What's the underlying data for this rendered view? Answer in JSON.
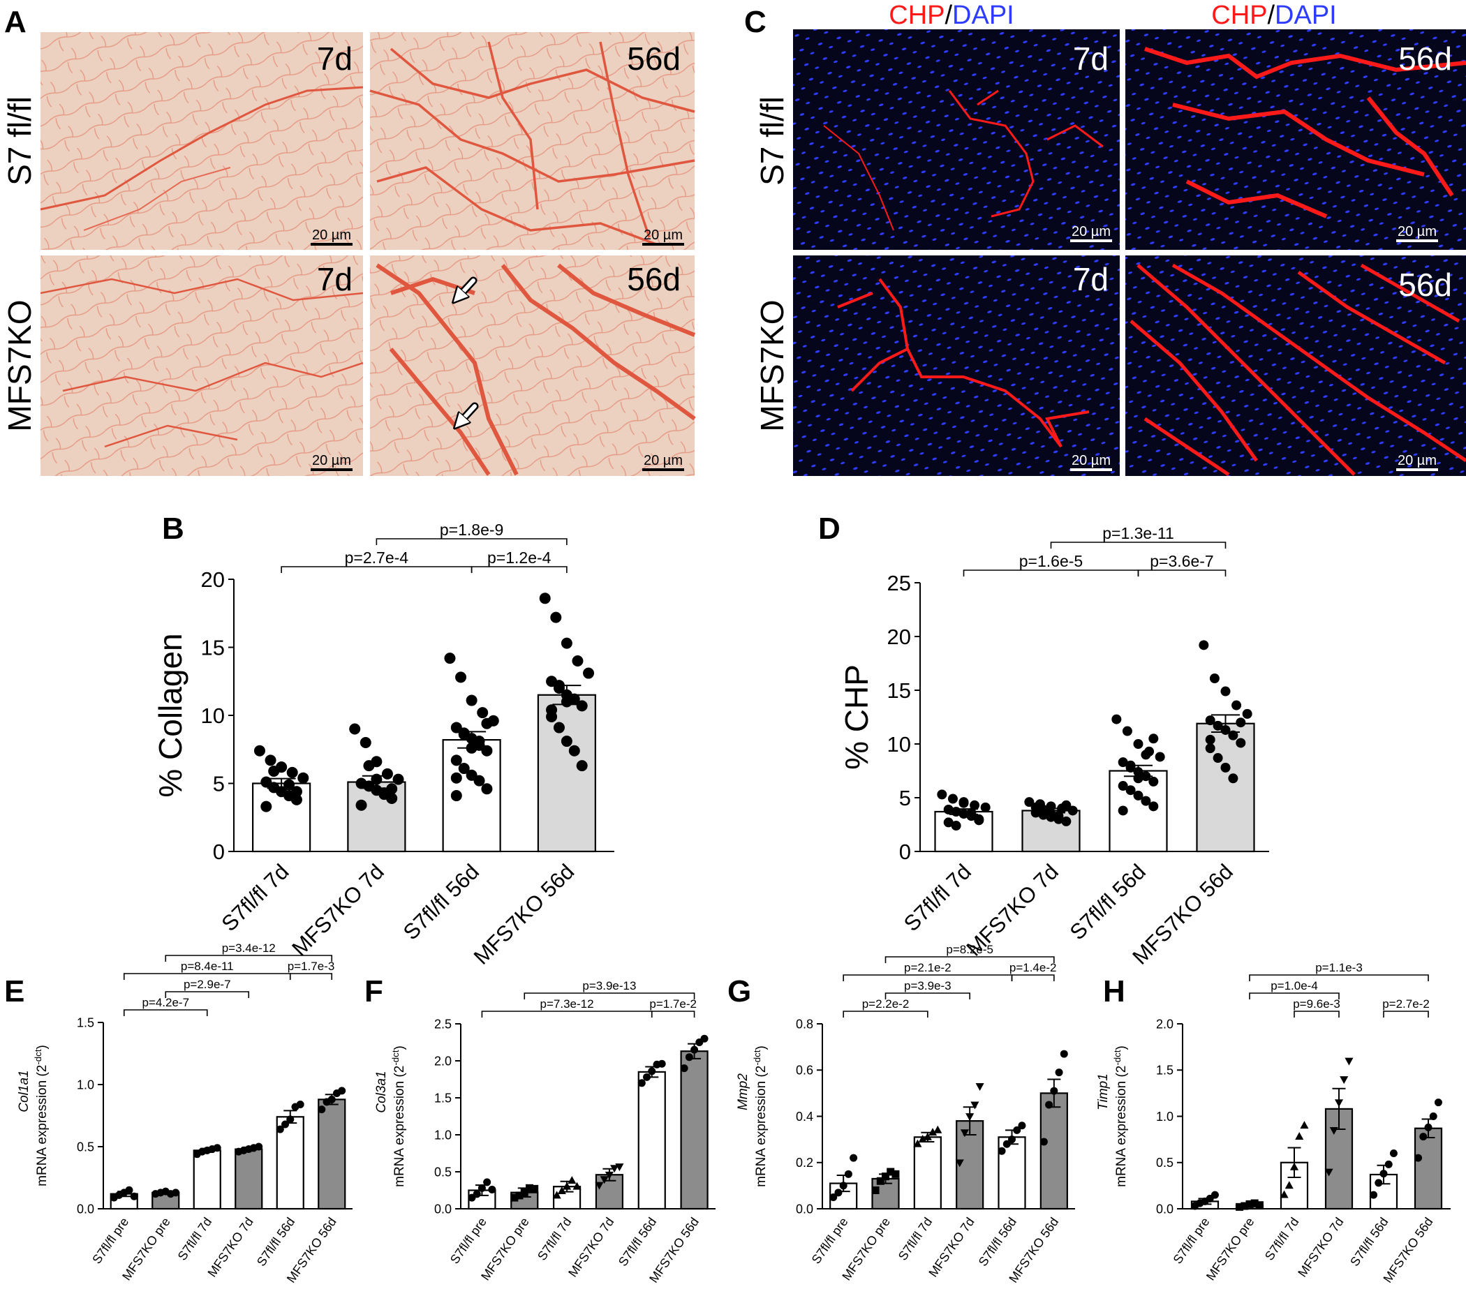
{
  "panel_letters": [
    "A",
    "B",
    "C",
    "D",
    "E",
    "F",
    "G",
    "H"
  ],
  "histology": {
    "rows": [
      "S7 fl/fl",
      "MFS7KO"
    ],
    "timepoints": [
      "7d",
      "56d"
    ],
    "scale_bar": "20 µm",
    "stain_title": {
      "chp": "CHP",
      "sep": "/",
      "dapi": "DAPI"
    },
    "colors": {
      "picrosirius_bg": "#ecd0c0",
      "picrosirius_fiber": "#e0573f",
      "fluor_bg": "#05051c",
      "chp_red": "#ff1a1a",
      "dapi_blue": "#2e3cff"
    }
  },
  "chart_data": [
    {
      "id": "B",
      "type": "bar",
      "ylabel": "% Collagen",
      "ylim": [
        0,
        20
      ],
      "yticks": [
        0,
        5,
        10,
        15,
        20
      ],
      "categories": [
        "S7fl/fl 7d",
        "MFS7KO 7d",
        "S7fl/fl 56d",
        "MFS7KO 56d"
      ],
      "values": [
        5.0,
        5.1,
        8.2,
        11.5
      ],
      "sem": [
        0.35,
        0.45,
        0.6,
        0.7
      ],
      "bar_fill": [
        "#ffffff",
        "#d9d9d9",
        "#ffffff",
        "#d9d9d9"
      ],
      "points": [
        [
          7.4,
          6.7,
          6.2,
          5.8,
          5.4,
          5.1,
          4.7,
          4.4,
          4.1,
          3.8,
          3.3,
          5.9,
          6.2,
          4.9,
          4.4
        ],
        [
          9.0,
          8.0,
          6.6,
          5.7,
          5.3,
          5.0,
          4.8,
          4.5,
          4.2,
          3.9,
          3.4,
          6.3,
          5.3,
          4.3,
          4.6
        ],
        [
          14.2,
          12.8,
          11.1,
          10.2,
          9.6,
          9.1,
          8.6,
          8.3,
          7.8,
          7.4,
          6.7,
          6.1,
          5.6,
          5.2,
          4.6,
          4.1,
          8.7,
          7.6,
          8.1,
          9.4,
          5.4
        ],
        [
          18.6,
          17.2,
          15.3,
          14.0,
          13.1,
          12.5,
          12.0,
          11.5,
          11.2,
          10.7,
          9.9,
          9.1,
          8.1,
          7.4,
          6.3,
          10.4,
          12.2,
          11.0
        ]
      ],
      "annotations": [
        {
          "from": 0,
          "to": 2,
          "label": "p=2.7e-4",
          "level": 0
        },
        {
          "from": 2,
          "to": 3,
          "label": "p=1.2e-4",
          "level": 0
        },
        {
          "from": 1,
          "to": 3,
          "label": "p=1.8e-9",
          "level": 1
        }
      ]
    },
    {
      "id": "D",
      "type": "bar",
      "ylabel": "% CHP",
      "ylim": [
        0,
        25
      ],
      "yticks": [
        0,
        5,
        10,
        15,
        20,
        25
      ],
      "categories": [
        "S7fl/fl 7d",
        "MFS7KO 7d",
        "S7fl/fl 56d",
        "MFS7KO 56d"
      ],
      "values": [
        3.7,
        3.8,
        7.5,
        11.9
      ],
      "sem": [
        0.25,
        0.2,
        0.5,
        0.8
      ],
      "bar_fill": [
        "#ffffff",
        "#d9d9d9",
        "#ffffff",
        "#d9d9d9"
      ],
      "points": [
        [
          5.3,
          4.9,
          4.6,
          4.3,
          4.1,
          3.9,
          3.7,
          3.5,
          3.3,
          3.0,
          2.7,
          2.4,
          4.5,
          3.6,
          2.9
        ],
        [
          4.6,
          4.4,
          4.2,
          4.0,
          3.8,
          3.6,
          3.4,
          3.2,
          3.0,
          2.8,
          4.1,
          3.9,
          3.5,
          3.3,
          4.3
        ],
        [
          12.3,
          11.2,
          10.0,
          9.3,
          8.8,
          8.3,
          7.8,
          7.4,
          7.0,
          6.5,
          6.1,
          5.7,
          5.2,
          4.7,
          4.2,
          3.8,
          8.0,
          6.8,
          9.0,
          10.5
        ],
        [
          19.2,
          16.1,
          14.9,
          13.6,
          12.8,
          12.2,
          11.7,
          11.3,
          10.8,
          10.1,
          9.6,
          8.7,
          7.8,
          6.8,
          12.0,
          10.4
        ]
      ],
      "annotations": [
        {
          "from": 0,
          "to": 2,
          "label": "p=1.6e-5",
          "level": 0
        },
        {
          "from": 2,
          "to": 3,
          "label": "p=3.6e-7",
          "level": 0
        },
        {
          "from": 1,
          "to": 3,
          "label": "p=1.3e-11",
          "level": 1
        }
      ]
    },
    {
      "id": "E",
      "type": "bar",
      "ylabel_gene": "Col1a1",
      "ylabel": "mRNA expression (2",
      "ylabel_sup": "-dct",
      "ylabel_end": ")",
      "ylim": [
        0,
        1.5
      ],
      "yticks": [
        0.0,
        0.5,
        1.0,
        1.5
      ],
      "categories": [
        "S7fl/fl pre",
        "MFS7KO pre",
        "S7fl/fl 7d",
        "MFS7KO 7d",
        "S7fl/fl 56d",
        "MFS7KO 56d"
      ],
      "values": [
        0.12,
        0.13,
        0.47,
        0.48,
        0.74,
        0.88
      ],
      "sem": [
        0.02,
        0.01,
        0.015,
        0.015,
        0.05,
        0.04
      ],
      "bar_fill": [
        "#ffffff",
        "#8c8c8c",
        "#ffffff",
        "#8c8c8c",
        "#ffffff",
        "#8c8c8c"
      ],
      "marker": "circle",
      "points": [
        [
          0.09,
          0.11,
          0.13,
          0.15,
          0.1
        ],
        [
          0.12,
          0.13,
          0.14,
          0.12,
          0.13
        ],
        [
          0.44,
          0.46,
          0.47,
          0.48,
          0.49
        ],
        [
          0.46,
          0.47,
          0.48,
          0.49,
          0.5
        ],
        [
          0.64,
          0.68,
          0.72,
          0.82,
          0.84
        ],
        [
          0.8,
          0.86,
          0.88,
          0.93,
          0.95
        ]
      ],
      "annotations": [
        {
          "from": 0,
          "to": 2,
          "label": "p=4.2e-7",
          "level": 0
        },
        {
          "from": 1,
          "to": 3,
          "label": "p=2.9e-7",
          "level": 1
        },
        {
          "from": 4,
          "to": 5,
          "label": "p=1.7e-3",
          "level": 2
        },
        {
          "from": 0,
          "to": 4,
          "label": "p=8.4e-11",
          "level": 2
        },
        {
          "from": 1,
          "to": 5,
          "label": "p=3.4e-12",
          "level": 3
        }
      ]
    },
    {
      "id": "F",
      "type": "bar",
      "ylabel_gene": "Col3a1",
      "ylabel": "mRNA expression (2",
      "ylabel_sup": "-dct",
      "ylabel_end": ")",
      "ylim": [
        0,
        2.5
      ],
      "yticks": [
        0.0,
        0.5,
        1.0,
        1.5,
        2.0,
        2.5
      ],
      "categories": [
        "S7fl/fl pre",
        "MFS7KO pre",
        "S7fl/fl 7d",
        "MFS7KO 7d",
        "S7fl/fl 56d",
        "MFS7KO 56d"
      ],
      "values": [
        0.25,
        0.22,
        0.3,
        0.46,
        1.85,
        2.13
      ],
      "sem": [
        0.07,
        0.06,
        0.07,
        0.08,
        0.07,
        0.1
      ],
      "bar_fill": [
        "#ffffff",
        "#8c8c8c",
        "#ffffff",
        "#8c8c8c",
        "#ffffff",
        "#8c8c8c"
      ],
      "marker": [
        "circle",
        "square",
        "triangle",
        "triangle-down",
        "circle",
        "circle"
      ],
      "points": [
        [
          0.15,
          0.2,
          0.28,
          0.36,
          0.26
        ],
        [
          0.15,
          0.18,
          0.22,
          0.28,
          0.27
        ],
        [
          0.18,
          0.24,
          0.3,
          0.38,
          0.3
        ],
        [
          0.32,
          0.4,
          0.46,
          0.55,
          0.57
        ],
        [
          1.7,
          1.78,
          1.86,
          1.95,
          1.96
        ],
        [
          1.9,
          2.05,
          2.15,
          2.25,
          2.3
        ]
      ],
      "annotations": [
        {
          "from": 4,
          "to": 5,
          "label": "p=1.7e-2",
          "level": 0
        },
        {
          "from": 0,
          "to": 4,
          "label": "p=7.3e-12",
          "level": 0
        },
        {
          "from": 1,
          "to": 5,
          "label": "p=3.9e-13",
          "level": 1
        }
      ]
    },
    {
      "id": "G",
      "type": "bar",
      "ylabel_gene": "Mmp2",
      "ylabel": "mRNA expression (2",
      "ylabel_sup": "-dct",
      "ylabel_end": ")",
      "ylim": [
        0,
        0.8
      ],
      "yticks": [
        0.0,
        0.2,
        0.4,
        0.6,
        0.8
      ],
      "categories": [
        "S7fl/fl pre",
        "MFS7KO pre",
        "S7fl/fl 7d",
        "MFS7KO 7d",
        "S7fl/fl 56d",
        "MFS7KO 56d"
      ],
      "values": [
        0.11,
        0.13,
        0.31,
        0.38,
        0.31,
        0.5
      ],
      "sem": [
        0.035,
        0.02,
        0.02,
        0.06,
        0.03,
        0.06
      ],
      "bar_fill": [
        "#ffffff",
        "#8c8c8c",
        "#ffffff",
        "#8c8c8c",
        "#ffffff",
        "#8c8c8c"
      ],
      "marker": [
        "circle",
        "square",
        "triangle",
        "triangle-down",
        "circle",
        "circle"
      ],
      "points": [
        [
          0.05,
          0.07,
          0.1,
          0.15,
          0.22
        ],
        [
          0.08,
          0.12,
          0.14,
          0.16,
          0.15
        ],
        [
          0.28,
          0.3,
          0.31,
          0.33,
          0.34
        ],
        [
          0.2,
          0.33,
          0.4,
          0.45,
          0.53
        ],
        [
          0.25,
          0.28,
          0.3,
          0.34,
          0.36
        ],
        [
          0.29,
          0.45,
          0.51,
          0.59,
          0.67
        ]
      ],
      "annotations": [
        {
          "from": 0,
          "to": 2,
          "label": "p=2.2e-2",
          "level": 0
        },
        {
          "from": 1,
          "to": 3,
          "label": "p=3.9e-3",
          "level": 1
        },
        {
          "from": 4,
          "to": 5,
          "label": "p=1.4e-2",
          "level": 2
        },
        {
          "from": 0,
          "to": 4,
          "label": "p=2.1e-2",
          "level": 2
        },
        {
          "from": 1,
          "to": 5,
          "label": "p=8.2e-5",
          "level": 3
        }
      ]
    },
    {
      "id": "H",
      "type": "bar",
      "ylabel_gene": "Timp1",
      "ylabel": "mRNA expression (2",
      "ylabel_sup": "-dct",
      "ylabel_end": ")",
      "ylim": [
        0,
        2.0
      ],
      "yticks": [
        0.0,
        0.5,
        1.0,
        1.5,
        2.0
      ],
      "categories": [
        "S7fl/fl pre",
        "MFS7KO pre",
        "S7fl/fl 7d",
        "MFS7KO 7d",
        "S7fl/fl 56d",
        "MFS7KO 56d"
      ],
      "values": [
        0.08,
        0.04,
        0.5,
        1.08,
        0.37,
        0.87
      ],
      "sem": [
        0.03,
        0.015,
        0.16,
        0.22,
        0.1,
        0.1
      ],
      "bar_fill": [
        "#ffffff",
        "#8c8c8c",
        "#ffffff",
        "#8c8c8c",
        "#ffffff",
        "#8c8c8c"
      ],
      "marker": [
        "circle",
        "square",
        "triangle",
        "triangle-down",
        "circle",
        "circle"
      ],
      "points": [
        [
          0.03,
          0.06,
          0.08,
          0.11,
          0.15
        ],
        [
          0.02,
          0.03,
          0.05,
          0.06,
          0.04
        ],
        [
          0.15,
          0.25,
          0.45,
          0.78,
          0.9
        ],
        [
          0.4,
          0.85,
          1.15,
          1.4,
          1.6
        ],
        [
          0.15,
          0.28,
          0.38,
          0.48,
          0.6
        ],
        [
          0.55,
          0.78,
          0.88,
          1.0,
          1.15
        ]
      ],
      "annotations": [
        {
          "from": 2,
          "to": 3,
          "label": "p=9.6e-3",
          "level": 0
        },
        {
          "from": 4,
          "to": 5,
          "label": "p=2.7e-2",
          "level": 0
        },
        {
          "from": 1,
          "to": 3,
          "label": "p=1.0e-4",
          "level": 1
        },
        {
          "from": 1,
          "to": 5,
          "label": "p=1.1e-3",
          "level": 2
        }
      ]
    }
  ]
}
